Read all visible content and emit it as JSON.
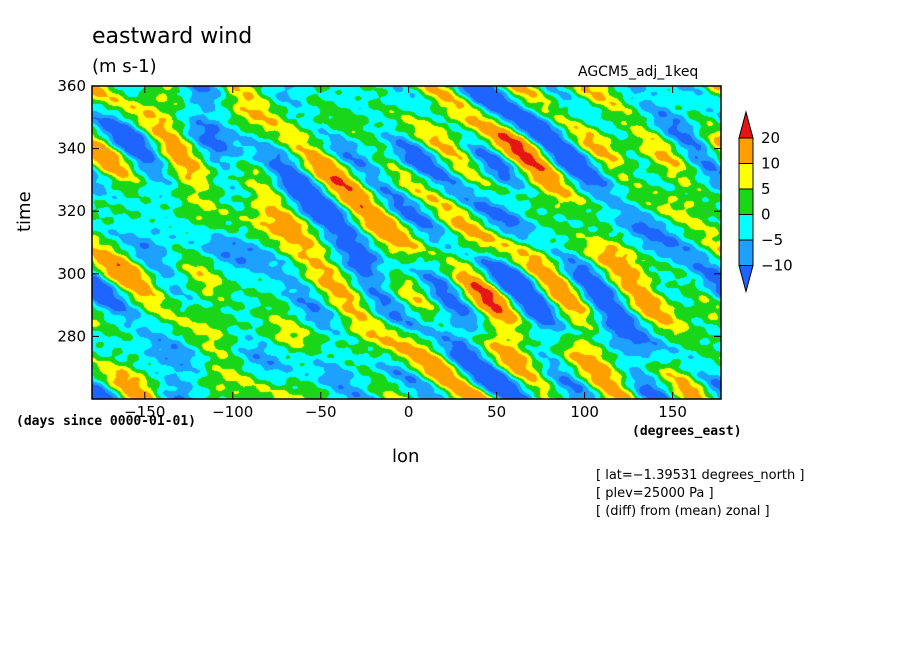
{
  "chart_data": {
    "type": "heatmap",
    "title": "eastward wind",
    "units": "(m s-1)",
    "source": "AGCM5_adj_1keq",
    "xlabel": "lon",
    "ylabel": "time",
    "x_units": "(degrees_east)",
    "y_units": "(days since 0000-01-01)",
    "xlim": [
      -180,
      177.5
    ],
    "ylim": [
      260,
      360
    ],
    "x_ticks": [
      -150,
      -100,
      -50,
      0,
      50,
      100,
      150
    ],
    "x_tick_labels": [
      "−150",
      "−100",
      "−50",
      "0",
      "50",
      "100",
      "150"
    ],
    "y_ticks": [
      280,
      300,
      320,
      340,
      360
    ],
    "y_tick_labels": [
      "280",
      "300",
      "320",
      "340",
      "360"
    ],
    "colorbar": {
      "levels": [
        -10,
        -5,
        0,
        5,
        10,
        20
      ],
      "labels": [
        "−10",
        "−5",
        "0",
        "5",
        "10",
        "20"
      ],
      "colors": [
        "#1e64ff",
        "#1ea0ff",
        "#00ffff",
        "#19d619",
        "#ffff00",
        "#ffa000",
        "#e61414"
      ]
    },
    "pattern": "westward-propagating diagonal bands of positive and negative anomalies, typical amplitude −10 to 15 m s-1",
    "annotations": [
      "[ lat=−1.39531 degrees_north ]",
      "[ plev=25000 Pa ]",
      "[ (diff) from (mean) zonal ]"
    ]
  }
}
